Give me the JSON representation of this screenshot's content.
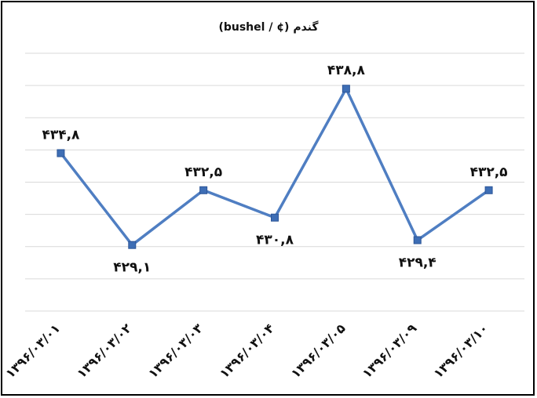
{
  "chart_data": {
    "type": "line",
    "title": "گندم (¢ / bushel)",
    "categories": [
      "۱۳۹۶/۰۳/۰۱",
      "۱۳۹۶/۰۳/۰۲",
      "۱۳۹۶/۰۳/۰۳",
      "۱۳۹۶/۰۳/۰۴",
      "۱۳۹۶/۰۳/۰۵",
      "۱۳۹۶/۰۳/۰۹",
      "۱۳۹۶/۰۳/۱۰"
    ],
    "values": [
      434.8,
      429.1,
      432.5,
      430.8,
      438.8,
      429.4,
      432.5
    ],
    "data_labels": [
      "۴۳۴,۸",
      "۴۲۹,۱",
      "۴۳۲,۵",
      "۴۳۰,۸",
      "۴۳۸,۸",
      "۴۲۹,۴",
      "۴۳۲,۵"
    ],
    "ylim": [
      425,
      441
    ],
    "grid": true,
    "legend": "none",
    "colors": {
      "line": "#4f7ec2",
      "marker": "#3e6eb5",
      "grid": "#d9d9d9"
    }
  }
}
